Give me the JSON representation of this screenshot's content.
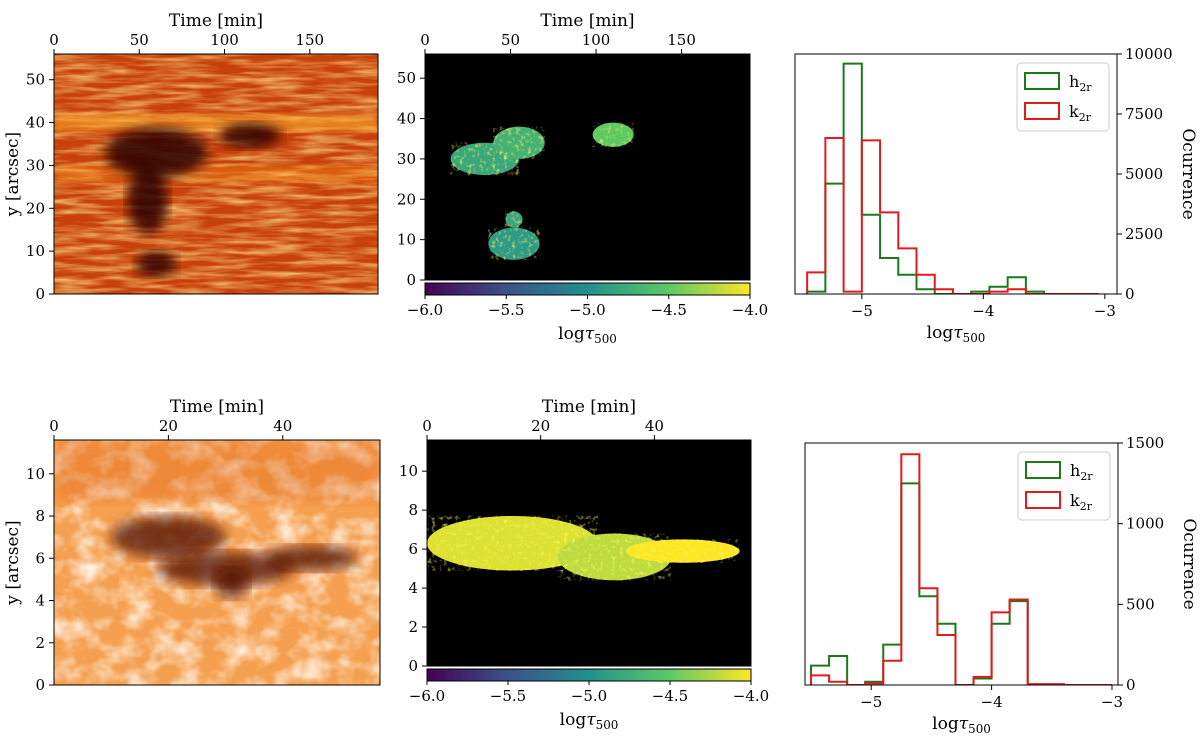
{
  "figure": {
    "rows": [
      {
        "intensity_panel": {
          "type": "heatmap",
          "colormap": "gist_heat",
          "x_label": "Time [min]",
          "x_range": [
            0,
            190
          ],
          "x_ticks": [
            0,
            50,
            100,
            150
          ],
          "y_label": "y [arcsec]",
          "y_range": [
            0,
            56
          ],
          "y_ticks": [
            0,
            10,
            20,
            30,
            40,
            50
          ],
          "features": [
            {
              "desc": "dark pore",
              "t": 60,
              "y": 33,
              "rt": 30,
              "ry": 6
            },
            {
              "desc": "dark pore",
              "t": 115,
              "y": 37,
              "rt": 18,
              "ry": 3
            },
            {
              "desc": "dark lane",
              "t": 55,
              "y": 22,
              "rt": 12,
              "ry": 8
            },
            {
              "desc": "dark patch",
              "t": 60,
              "y": 7,
              "rt": 12,
              "ry": 3
            }
          ]
        },
        "tau_map_panel": {
          "type": "heatmap",
          "colormap": "viridis",
          "x_label": "Time [min]",
          "x_range": [
            0,
            190
          ],
          "x_ticks": [
            0,
            50,
            100,
            150
          ],
          "y_range": [
            0,
            56
          ],
          "y_ticks": [
            0,
            10,
            20,
            30,
            40,
            50
          ],
          "colorbar_range": [
            -6.0,
            -4.0
          ],
          "colorbar_ticks": [
            "−6.0",
            "−5.5",
            "−5.0",
            "−4.5",
            "−4.0"
          ],
          "colorbar_label_main": "log",
          "colorbar_label_tau": "τ",
          "colorbar_label_sub": "500",
          "blobs": [
            {
              "t": 35,
              "y": 30,
              "rt": 20,
              "ry": 4,
              "value": -4.8
            },
            {
              "t": 55,
              "y": 34,
              "rt": 15,
              "ry": 4,
              "value": -4.7
            },
            {
              "t": 110,
              "y": 36,
              "rt": 12,
              "ry": 3,
              "value": -4.5
            },
            {
              "t": 52,
              "y": 9,
              "rt": 15,
              "ry": 4,
              "value": -4.9
            },
            {
              "t": 52,
              "y": 15,
              "rt": 5,
              "ry": 2,
              "value": -4.8
            }
          ]
        },
        "histogram_panel": {
          "type": "bar",
          "x_label_main": "log",
          "x_label_tau": "τ",
          "x_label_sub": "500",
          "x_range": [
            -5.55,
            -2.9
          ],
          "x_ticks": [
            -5,
            -4,
            -3
          ],
          "x_tick_labels": [
            "−5",
            "−4",
            "−3"
          ],
          "y_label": "Ocurrence",
          "y_range": [
            0,
            10000
          ],
          "y_ticks": [
            0,
            2500,
            5000,
            7500,
            10000
          ],
          "bin_edges": [
            -5.45,
            -5.3,
            -5.15,
            -5.0,
            -4.85,
            -4.7,
            -4.55,
            -4.4,
            -4.25,
            -4.1,
            -3.95,
            -3.8,
            -3.65,
            -3.5,
            -3.35,
            -3.2,
            -3.05
          ],
          "series": [
            {
              "name": "h2r",
              "label_main": "h",
              "label_sub": "2r",
              "color": "#1a7a1a",
              "counts": [
                100,
                4600,
                9600,
                3300,
                1500,
                800,
                200,
                0,
                0,
                100,
                300,
                700,
                100,
                0,
                0,
                0
              ]
            },
            {
              "name": "k2r",
              "label_main": "k",
              "label_sub": "2r",
              "color": "#e31a1c",
              "counts": [
                900,
                6500,
                100,
                6400,
                3400,
                1900,
                800,
                200,
                0,
                0,
                100,
                200,
                0,
                0,
                0,
                0
              ]
            }
          ]
        }
      },
      {
        "intensity_panel": {
          "type": "heatmap",
          "colormap": "gist_heat",
          "x_label": "Time [min]",
          "x_range": [
            0,
            57
          ],
          "x_ticks": [
            0,
            20,
            40
          ],
          "y_label": "y [arcsec]",
          "y_range": [
            0,
            11.6
          ],
          "y_ticks": [
            0,
            2,
            4,
            6,
            8,
            10
          ],
          "features": [
            {
              "desc": "dark filament",
              "t": 20,
              "y": 7,
              "rt": 10,
              "ry": 1
            },
            {
              "desc": "dark filament",
              "t": 30,
              "y": 5.5,
              "rt": 12,
              "ry": 0.8
            },
            {
              "desc": "dark core",
              "t": 31,
              "y": 4.8,
              "rt": 3,
              "ry": 0.7
            },
            {
              "desc": "dark tail",
              "t": 45,
              "y": 6,
              "rt": 8,
              "ry": 0.6
            }
          ]
        },
        "tau_map_panel": {
          "type": "heatmap",
          "colormap": "viridis",
          "x_label": "Time [min]",
          "x_range": [
            0,
            57
          ],
          "x_ticks": [
            0,
            20,
            40
          ],
          "y_range": [
            0,
            11.6
          ],
          "y_ticks": [
            0,
            2,
            4,
            6,
            8,
            10
          ],
          "colorbar_range": [
            -6.0,
            -4.0
          ],
          "colorbar_ticks": [
            "−6.0",
            "−5.5",
            "−5.0",
            "−4.5",
            "−4.0"
          ],
          "colorbar_label_main": "log",
          "colorbar_label_tau": "τ",
          "colorbar_label_sub": "500",
          "blobs": [
            {
              "t": 15,
              "y": 6.3,
              "rt": 15,
              "ry": 1.4,
              "value": -4.1
            },
            {
              "t": 33,
              "y": 5.6,
              "rt": 10,
              "ry": 1.2,
              "value": -4.2
            },
            {
              "t": 45,
              "y": 5.9,
              "rt": 10,
              "ry": 0.6,
              "value": -4.0
            }
          ]
        },
        "histogram_panel": {
          "type": "bar",
          "x_label_main": "log",
          "x_label_tau": "τ",
          "x_label_sub": "500",
          "x_range": [
            -5.55,
            -2.95
          ],
          "x_ticks": [
            -5,
            -4,
            -3
          ],
          "x_tick_labels": [
            "−5",
            "−4",
            "−3"
          ],
          "y_label": "Ocurrence",
          "y_range": [
            0,
            1500
          ],
          "y_ticks": [
            0,
            500,
            1000,
            1500
          ],
          "bin_edges": [
            -5.5,
            -5.35,
            -5.2,
            -5.05,
            -4.9,
            -4.75,
            -4.6,
            -4.45,
            -4.3,
            -4.15,
            -4.0,
            -3.85,
            -3.7,
            -3.55,
            -3.4,
            -3.25,
            -3.1,
            -3.0
          ],
          "series": [
            {
              "name": "h2r",
              "label_main": "h",
              "label_sub": "2r",
              "color": "#1a7a1a",
              "counts": [
                120,
                180,
                0,
                20,
                250,
                1250,
                550,
                380,
                0,
                40,
                380,
                520,
                5,
                5,
                0,
                0,
                0
              ]
            },
            {
              "name": "k2r",
              "label_main": "k",
              "label_sub": "2r",
              "color": "#e31a1c",
              "counts": [
                60,
                20,
                0,
                10,
                150,
                1430,
                600,
                310,
                0,
                50,
                450,
                530,
                5,
                5,
                0,
                0,
                0
              ]
            }
          ]
        }
      }
    ]
  }
}
